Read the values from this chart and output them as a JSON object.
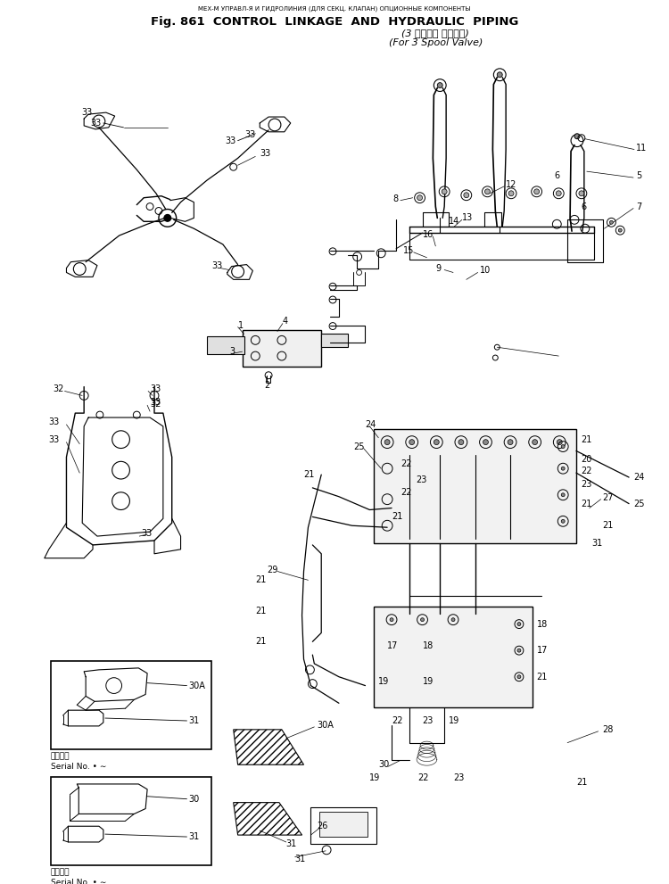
{
  "title_top": "МЕХ-М УПРАВЛ-Я И ГИДРОЛИНИЯ (ДЛЯ СЕКЦ. КЛАПАН) ОПЦИОННЫЕ КОМПОНЕНТЫ",
  "title_line1": "Fig. 861  CONTROL  LINKAGE  AND  HYDRAULIC  PIPING",
  "title_line2": "(3 スプール バルブ用)",
  "title_line3": "(For 3 Spool Valve)",
  "bg_color": "#ffffff",
  "line_color": "#000000",
  "text_color": "#000000",
  "fig_width": 7.5,
  "fig_height": 9.91,
  "dpi": 100,
  "serial_text_ja": "適用号機",
  "serial_text_en": "Serial No. • ∼"
}
